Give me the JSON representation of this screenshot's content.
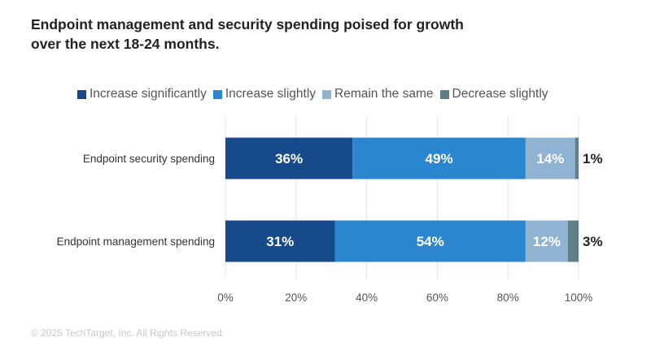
{
  "title": "Endpoint management and security spending poised for growth\nover the next 18-24 months.",
  "copyright": "© 2025 TechTarget, Inc. All Rights Reserved.",
  "colors": {
    "increase_significantly": "#174A8B",
    "increase_slightly": "#2B86CF",
    "remain_the_same": "#8FB3D3",
    "decrease_slightly": "#5F7F86",
    "grid": "#E3E3E3",
    "axis_text": "#555555"
  },
  "chart_data": {
    "type": "bar",
    "orientation": "horizontal",
    "stacked": true,
    "categories": [
      "Endpoint security spending",
      "Endpoint management spending"
    ],
    "series": [
      {
        "name": "Increase significantly",
        "values": [
          36,
          31
        ],
        "labels": [
          "36%",
          "31%"
        ]
      },
      {
        "name": "Increase slightly",
        "values": [
          49,
          54
        ],
        "labels": [
          "49%",
          "54%"
        ]
      },
      {
        "name": "Remain the same",
        "values": [
          14,
          12
        ],
        "labels": [
          "14%",
          "12%"
        ]
      },
      {
        "name": "Decrease slightly",
        "values": [
          1,
          3
        ],
        "labels": [
          "1%",
          "3%"
        ]
      }
    ],
    "xlim": [
      0,
      100
    ],
    "xticks": [
      "0%",
      "20%",
      "40%",
      "60%",
      "80%",
      "100%"
    ],
    "grid": true,
    "legend": "top"
  }
}
